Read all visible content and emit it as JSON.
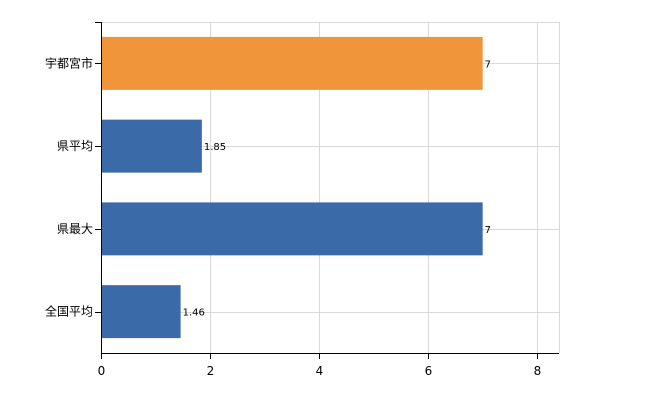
{
  "chart_data": {
    "type": "bar",
    "orientation": "horizontal",
    "categories": [
      "宇都宮市",
      "県平均",
      "県最大",
      "全国平均"
    ],
    "values": [
      7,
      1.85,
      7,
      1.46
    ],
    "data_labels": [
      "7",
      "1.85",
      "7",
      "1.46"
    ],
    "bar_colors": [
      "#f0953a",
      "#3a6aa7",
      "#3a6aa7",
      "#3a6aa7"
    ],
    "xlim": [
      0,
      8.4
    ],
    "x_ticks": [
      0,
      2,
      4,
      6,
      8
    ],
    "x_tick_labels": [
      "0",
      "2",
      "4",
      "6",
      "8"
    ],
    "grid": true,
    "title": "",
    "xlabel": "",
    "ylabel": ""
  }
}
